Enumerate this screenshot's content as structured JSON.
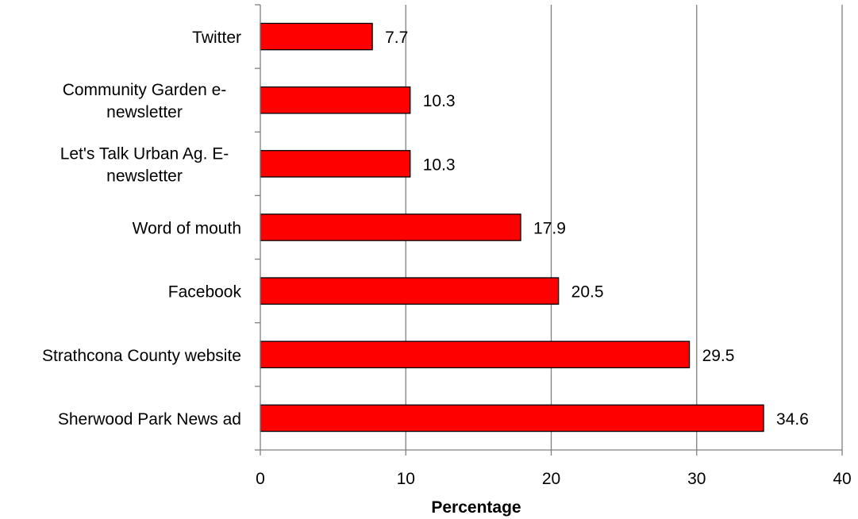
{
  "chart_data": {
    "type": "bar",
    "orientation": "horizontal",
    "categories": [
      "Twitter",
      "Community Garden e-newsletter",
      "Let's Talk Urban Ag. E-newsletter",
      "Word of mouth",
      "Facebook",
      "Strathcona County website",
      "Sherwood Park News ad"
    ],
    "category_lines": [
      [
        "Twitter"
      ],
      [
        "Community Garden e-",
        "newsletter"
      ],
      [
        "Let's Talk Urban Ag. E-",
        "newsletter"
      ],
      [
        "Word of mouth"
      ],
      [
        "Facebook"
      ],
      [
        "Strathcona County website"
      ],
      [
        "Sherwood Park News ad"
      ]
    ],
    "values": [
      7.7,
      10.3,
      10.3,
      17.9,
      20.5,
      29.5,
      34.6
    ],
    "data_labels": [
      "7.7",
      "10.3",
      "10.3",
      "17.9",
      "20.5",
      "29.5",
      "34.6"
    ],
    "xlabel": "Percentage",
    "ylabel": "",
    "xlim": [
      0,
      40
    ],
    "xticks": [
      0,
      10,
      20,
      30,
      40
    ],
    "grid": "vertical major gridlines",
    "legend": "none",
    "bar_color": "#ff0000",
    "bar_edge_color": "#000000",
    "grid_color": "#808080"
  }
}
